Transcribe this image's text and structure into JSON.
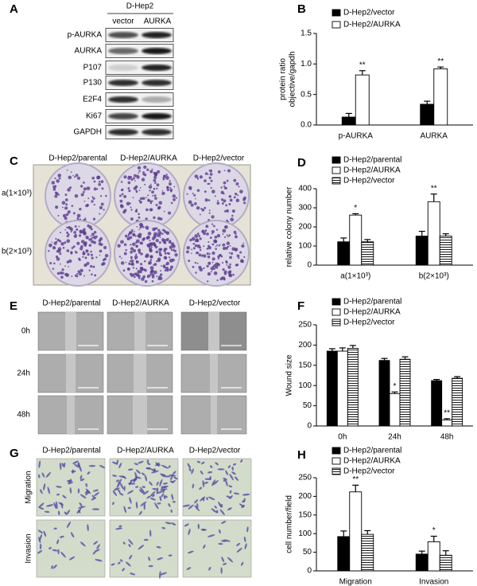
{
  "panel_labels": [
    "A",
    "B",
    "C",
    "D",
    "E",
    "F",
    "G",
    "H"
  ],
  "western_blot": {
    "group": "D-Hep2",
    "columns": [
      "vector",
      "AURKA"
    ],
    "rows": [
      "p-AURKA",
      "AURKA",
      "P107",
      "P130",
      "E2F4",
      "Ki67",
      "GAPDH"
    ]
  },
  "colony_assay": {
    "columns": [
      "D-Hep2/parental",
      "D-Hep2/AURKA",
      "D-Hep2/vector"
    ],
    "rows": [
      "a(1×10³)",
      "b(2×10³)"
    ]
  },
  "wound_assay": {
    "columns": [
      "D-Hep2/parental",
      "D-Hep2/AURKA",
      "D-Hep2/vector"
    ],
    "rows": [
      "0h",
      "24h",
      "48h"
    ]
  },
  "transwell_assay": {
    "columns": [
      "D-Hep2/parental",
      "D-Hep2/AURKA",
      "D-Hep2/vector"
    ],
    "rows": [
      "Migration",
      "Invasion"
    ]
  },
  "chart_data": [
    {
      "type": "bar",
      "ylabel": [
        "protein ratio",
        "objective/gapdh"
      ],
      "categories": [
        "p-AURKA",
        "AURKA"
      ],
      "series": [
        {
          "name": "D-Hep2/vector",
          "color": "#000000",
          "values": [
            0.13,
            0.34
          ],
          "errors": [
            0.06,
            0.05
          ]
        },
        {
          "name": "D-Hep2/AURKA",
          "color": "#ffffff",
          "values": [
            0.82,
            0.92
          ],
          "errors": [
            0.07,
            0.03
          ],
          "significance": [
            "**",
            "**"
          ]
        }
      ],
      "ylim": [
        0,
        1.5
      ],
      "yticks": [
        {
          "value": 0,
          "label": "0.0"
        },
        {
          "value": 0.5,
          "label": "0.5"
        },
        {
          "value": 1,
          "label": "1.0"
        },
        {
          "value": 1.5,
          "label": "1.5"
        }
      ]
    },
    {
      "type": "bar",
      "ylabel": "relative colony number",
      "categories": [
        "a(1×10³)",
        "b(2×10³)"
      ],
      "series": [
        {
          "name": "D-Hep2/parental",
          "color": "#000000",
          "values": [
            122,
            152
          ],
          "errors": [
            20,
            25
          ]
        },
        {
          "name": "D-Hep2/AURKA",
          "color": "#ffffff",
          "values": [
            262,
            332
          ],
          "errors": [
            7,
            40
          ],
          "significance": [
            "*",
            "**"
          ]
        },
        {
          "name": "D-Hep2/vector",
          "color": "#ffffff",
          "hatch": "horizontal",
          "values": [
            122,
            152
          ],
          "errors": [
            12,
            12
          ]
        }
      ],
      "ylim": [
        0,
        400
      ],
      "yticks": [
        0,
        100,
        200,
        300,
        400
      ]
    },
    {
      "type": "bar",
      "ylabel": "Wound size",
      "categories": [
        "0h",
        "24h",
        "48h"
      ],
      "series": [
        {
          "name": "D-Hep2/parental",
          "color": "#000000",
          "values": [
            185,
            162,
            112
          ],
          "errors": [
            6,
            5,
            3
          ]
        },
        {
          "name": "D-Hep2/AURKA",
          "color": "#ffffff",
          "values": [
            185,
            80,
            15
          ],
          "errors": [
            8,
            4,
            3
          ],
          "significance": [
            null,
            "*",
            "**"
          ]
        },
        {
          "name": "D-Hep2/vector",
          "color": "#ffffff",
          "hatch": "horizontal",
          "values": [
            192,
            165,
            118
          ],
          "errors": [
            7,
            6,
            4
          ]
        }
      ],
      "ylim": [
        0,
        250
      ],
      "yticks": [
        0,
        50,
        100,
        150,
        200,
        250
      ]
    },
    {
      "type": "bar",
      "ylabel": "cell number/field",
      "categories": [
        "Migration",
        "Invasion"
      ],
      "series": [
        {
          "name": "D-Hep2/parental",
          "color": "#000000",
          "values": [
            92,
            45
          ],
          "errors": [
            15,
            8
          ]
        },
        {
          "name": "D-Hep2/AURKA",
          "color": "#ffffff",
          "values": [
            212,
            78
          ],
          "errors": [
            18,
            15
          ],
          "significance": [
            "**",
            "*"
          ]
        },
        {
          "name": "D-Hep2/vector",
          "color": "#ffffff",
          "hatch": "horizontal",
          "values": [
            98,
            42
          ],
          "errors": [
            10,
            12
          ]
        }
      ],
      "ylim": [
        0,
        250
      ],
      "yticks": [
        0,
        50,
        100,
        150,
        200,
        250
      ]
    }
  ]
}
